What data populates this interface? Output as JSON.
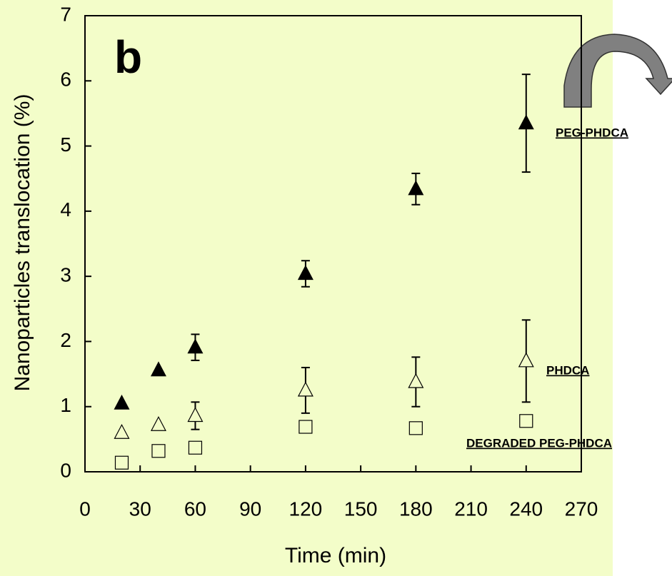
{
  "chart_data": {
    "type": "scatter",
    "panel_label": "b",
    "xlabel": "Time (min)",
    "ylabel": "Nanoparticles translocation (%)",
    "xlim": [
      0,
      270
    ],
    "xticks": [
      0,
      30,
      60,
      90,
      120,
      150,
      180,
      210,
      240,
      270
    ],
    "ylim": [
      0,
      7
    ],
    "yticks": [
      0,
      1,
      2,
      3,
      4,
      5,
      6,
      7
    ],
    "x": [
      20,
      40,
      60,
      120,
      180,
      240
    ],
    "series": [
      {
        "name": "PEG-PHDCA",
        "marker": "triangle",
        "filled": true,
        "color": "#000000",
        "values": [
          1.05,
          1.56,
          1.91,
          3.04,
          4.34,
          5.35
        ],
        "errors": [
          null,
          null,
          0.2,
          0.2,
          0.24,
          0.75
        ]
      },
      {
        "name": "PHDCA",
        "marker": "triangle",
        "filled": false,
        "color": "#000000",
        "values": [
          0.6,
          0.72,
          0.86,
          1.25,
          1.38,
          1.7
        ],
        "errors": [
          null,
          null,
          0.21,
          0.35,
          0.38,
          0.63
        ]
      },
      {
        "name": "DEGRADED PEG-PHDCA",
        "marker": "square",
        "filled": false,
        "color": "#000000",
        "values": [
          0.14,
          0.32,
          0.37,
          0.69,
          0.67,
          0.78
        ],
        "errors": [
          null,
          null,
          null,
          null,
          null,
          null
        ]
      }
    ]
  }
}
